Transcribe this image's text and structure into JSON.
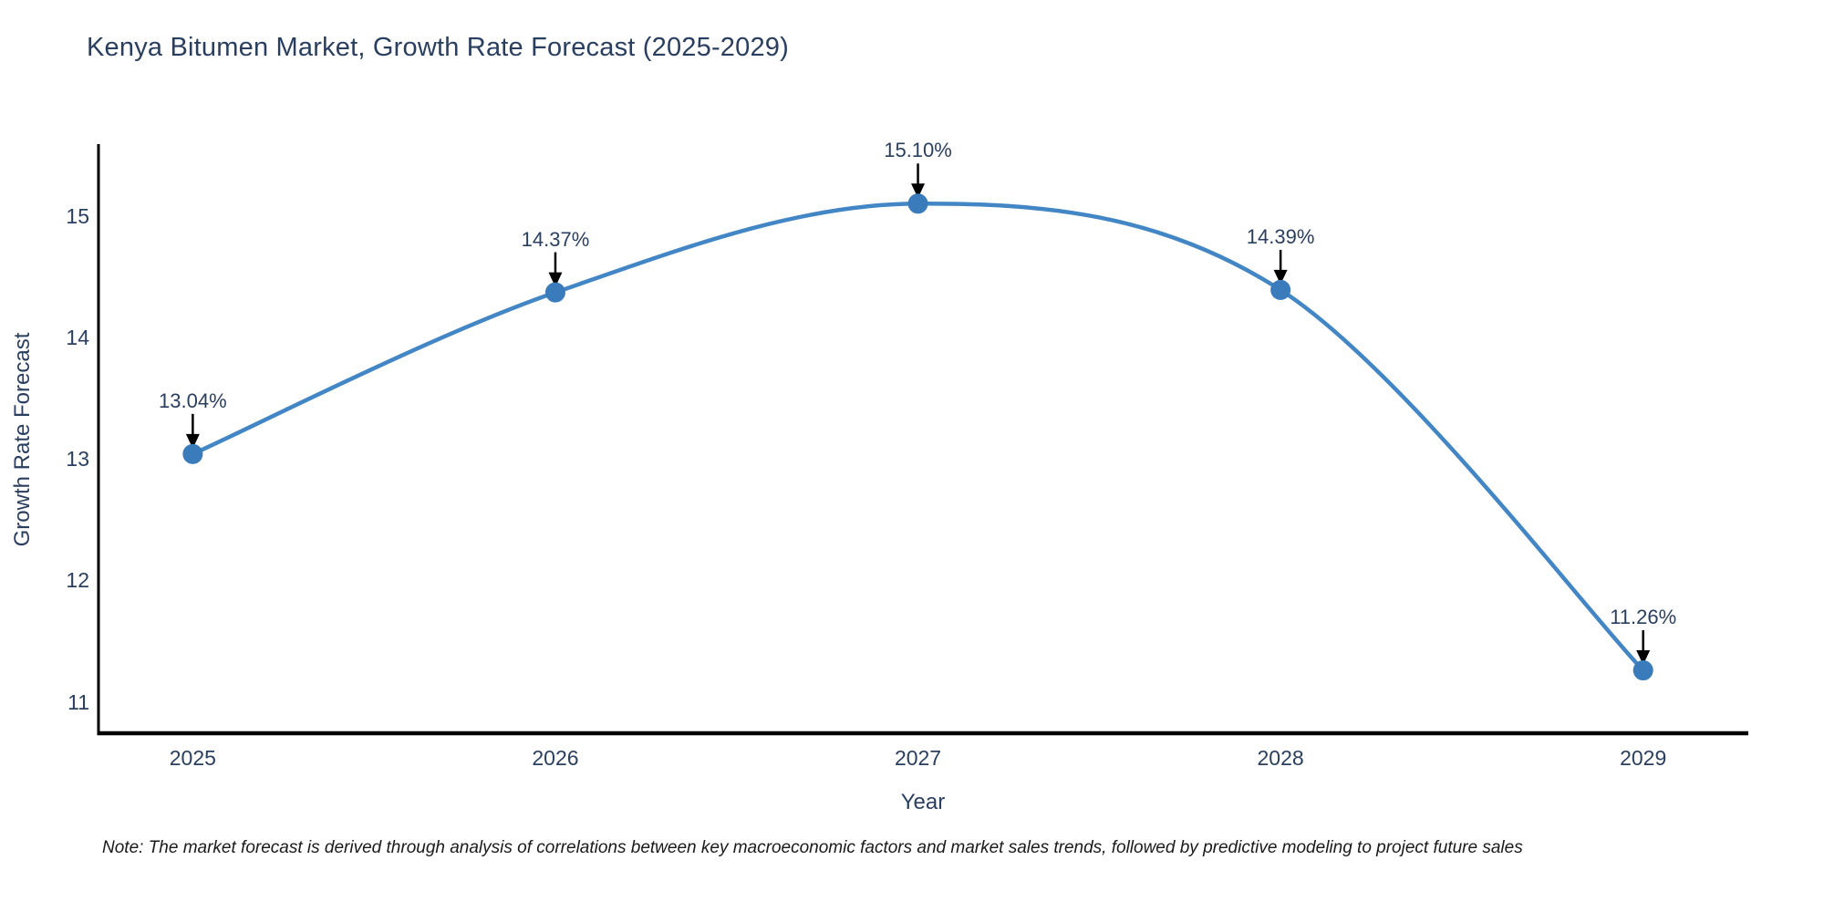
{
  "note": "Note: The market forecast is derived through analysis of correlations between key macroeconomic factors and market sales trends, followed by predictive modeling to project future sales",
  "chart_data": {
    "type": "line",
    "title": "Kenya Bitumen Market, Growth Rate Forecast (2025-2029)",
    "xlabel": "Year",
    "ylabel": "Growth Rate Forecast",
    "x": [
      2025,
      2026,
      2027,
      2028,
      2029
    ],
    "x_labels": [
      "2025",
      "2026",
      "2027",
      "2028",
      "2029"
    ],
    "values": [
      13.04,
      14.37,
      15.1,
      14.39,
      11.26
    ],
    "point_labels": [
      "13.04%",
      "14.37%",
      "15.10%",
      "14.39%",
      "11.26%"
    ],
    "yticks": [
      11,
      12,
      13,
      14,
      15
    ],
    "xlim": [
      2024.74,
      2029.29
    ],
    "ylim": [
      10.75,
      15.59
    ],
    "line_shape": "spline",
    "grid": false,
    "legend": "none",
    "colors": {
      "line": "#4286c5",
      "marker": "#3a7cbb",
      "arrow": "#000000",
      "text": "#2a3f5f",
      "spine": "#000000"
    }
  }
}
